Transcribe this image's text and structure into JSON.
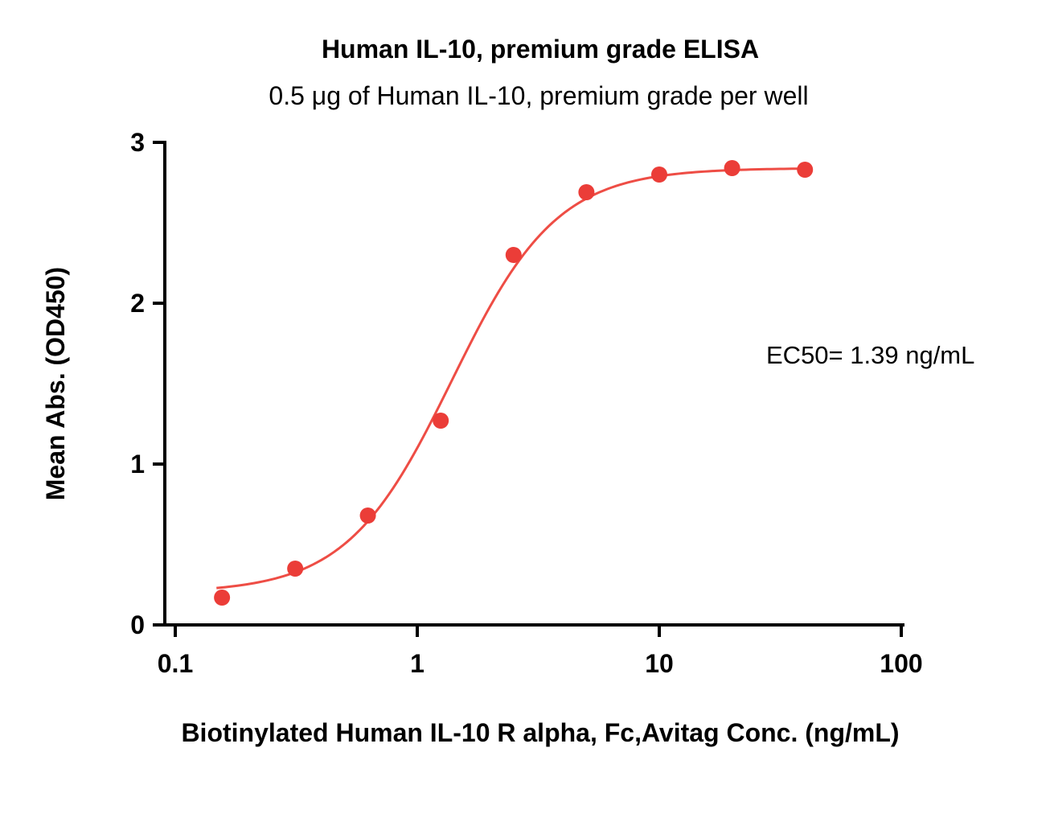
{
  "chart_data": {
    "type": "scatter",
    "title": "Human IL-10, premium grade ELISA",
    "subtitle": "0.5 μg of Human IL-10, premium grade per well",
    "xlabel": "Biotinylated Human IL-10 R alpha, Fc,Avitag Conc. (ng/mL)",
    "ylabel": "Mean Abs. (OD450)",
    "annotation": "EC50= 1.39 ng/mL",
    "x_scale": "log",
    "xlim": [
      0.1,
      100
    ],
    "ylim": [
      0,
      3
    ],
    "x_ticks": [
      0.1,
      1,
      10,
      100
    ],
    "x_tick_labels": [
      "0.1",
      "1",
      "10",
      "100"
    ],
    "y_ticks": [
      0,
      1,
      2,
      3
    ],
    "y_tick_labels": [
      "0",
      "1",
      "2",
      "3"
    ],
    "grid": "off",
    "legend": "none",
    "points": {
      "x": [
        0.156,
        0.313,
        0.625,
        1.25,
        2.5,
        5,
        10,
        20,
        40
      ],
      "y": [
        0.17,
        0.35,
        0.68,
        1.27,
        2.3,
        2.69,
        2.8,
        2.84,
        2.83
      ]
    },
    "fit": {
      "model": "4PL sigmoidal",
      "bottom": 0.2,
      "top": 2.84,
      "ec50": 1.39,
      "hill": 2.0,
      "x_start": 0.148,
      "x_end": 40
    },
    "colors": {
      "point": "#eb3d38",
      "line": "#ee4d45",
      "axis": "#000000"
    }
  }
}
